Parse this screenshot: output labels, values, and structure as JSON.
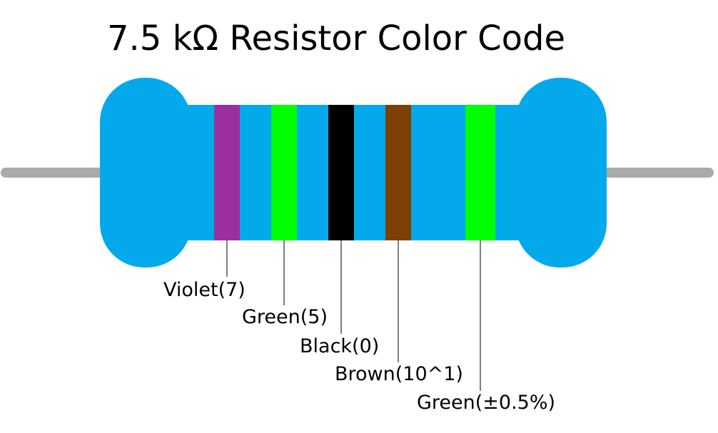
{
  "title": "7.5 kΩ Resistor Color Code",
  "colors": {
    "body": "#03a9eb",
    "lead": "#a9aaaa",
    "leader_line": "#000000"
  },
  "bands": [
    {
      "name": "violet",
      "color": "#9b2fa1",
      "label": "Violet(7)"
    },
    {
      "name": "green-1",
      "color": "#00ff00",
      "label": "Green(5)"
    },
    {
      "name": "black",
      "color": "#000000",
      "label": "Black(0)"
    },
    {
      "name": "brown",
      "color": "#7c4000",
      "label": "Brown(10^1)"
    },
    {
      "name": "green-2",
      "color": "#00ff00",
      "label": "Green(±0.5%)"
    }
  ]
}
